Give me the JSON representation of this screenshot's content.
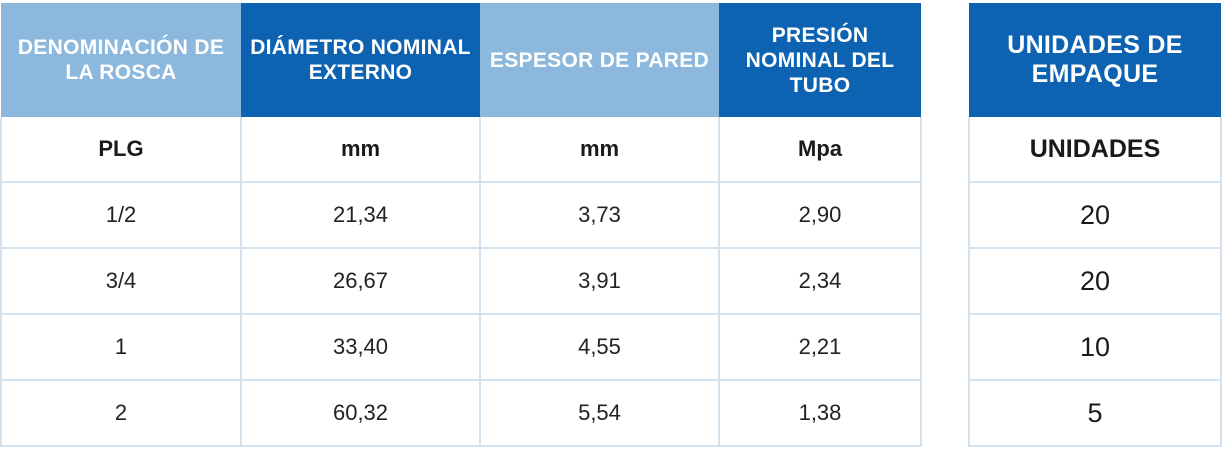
{
  "main_table": {
    "headers": [
      "DENOMINACIÓN DE LA ROSCA",
      "DIÁMETRO NOMINAL EXTERNO",
      "ESPESOR DE PARED",
      "PRESIÓN NOMINAL DEL TUBO"
    ],
    "units": [
      "PLG",
      "mm",
      "mm",
      "Mpa"
    ],
    "rows": [
      [
        "1/2",
        "21,34",
        "3,73",
        "2,90"
      ],
      [
        "3/4",
        "26,67",
        "3,91",
        "2,34"
      ],
      [
        "1",
        "33,40",
        "4,55",
        "2,21"
      ],
      [
        "2",
        "60,32",
        "5,54",
        "1,38"
      ]
    ],
    "colors": {
      "header_light": "#8bb8dc",
      "header_dark": "#0d63b2",
      "grid": "#d4e1ee"
    }
  },
  "pack_table": {
    "header": "UNIDADES DE EMPAQUE",
    "unit": "UNIDADES",
    "rows": [
      "20",
      "20",
      "10",
      "5"
    ]
  }
}
